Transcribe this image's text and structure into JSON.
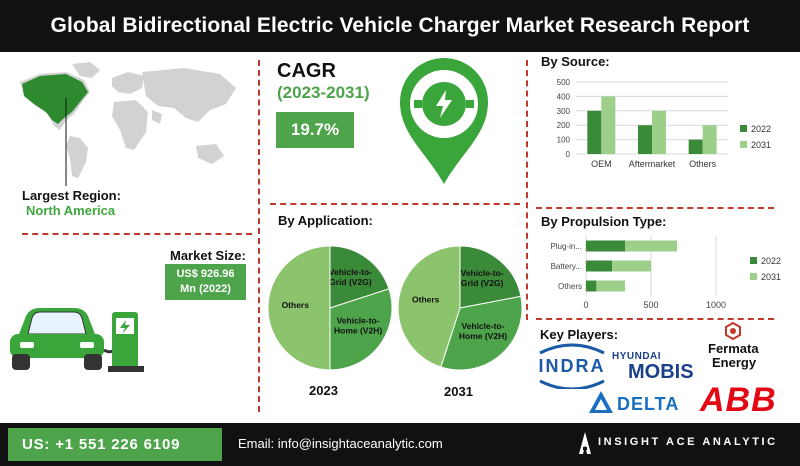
{
  "header": {
    "title": "Global Bidirectional Electric Vehicle Charger Market Research Report"
  },
  "largest_region": {
    "label": "Largest Region:",
    "value": "North America"
  },
  "market_size": {
    "label": "Market Size:",
    "line1": "US$ 926.96",
    "line2": "Mn (2022)"
  },
  "cagr": {
    "label": "CAGR",
    "period": "(2023-2031)",
    "value": "19.7%"
  },
  "footer": {
    "phone": "US: +1 551 226 6109",
    "email": "Email: info@insightaceanalytic.com",
    "brand": "INSIGHT ACE ANALYTIC"
  },
  "key_players": {
    "title": "Key Players:",
    "logos": [
      "INDRA",
      "HYUNDAI",
      "MOBIS",
      "Fermata",
      "Energy",
      "DELTA",
      "ABB"
    ]
  },
  "colors": {
    "dark_green": "#3a8a3a",
    "light_green": "#9ccf8a",
    "brand_green": "#4ea44b",
    "divider_red": "#c0392b"
  },
  "chart_data": [
    {
      "type": "bar",
      "title": "By Source:",
      "categories": [
        "OEM",
        "Aftermarket",
        "Others"
      ],
      "series": [
        {
          "name": "2022",
          "values": [
            300,
            200,
            100
          ]
        },
        {
          "name": "2031",
          "values": [
            400,
            300,
            200
          ]
        }
      ],
      "ylim": [
        0,
        500
      ],
      "yticks": [
        "0",
        "100",
        "200",
        "300",
        "400",
        "500"
      ],
      "grid": true,
      "legend": "right"
    },
    {
      "type": "bar",
      "orientation": "horizontal",
      "stacked": true,
      "title": "By Propulsion Type:",
      "categories": [
        "Plug-in...",
        "Battery...",
        "Others"
      ],
      "series": [
        {
          "name": "2022",
          "values": [
            300,
            200,
            80
          ]
        },
        {
          "name": "2031",
          "values": [
            400,
            300,
            220
          ]
        }
      ],
      "xlim": [
        0,
        1000
      ],
      "xticks": [
        "0",
        "500",
        "1000"
      ],
      "grid": true,
      "legend": "right"
    },
    {
      "type": "pie",
      "title": "By Application:",
      "label": "2023",
      "slices": [
        {
          "name": "Vehicle-to-Grid (V2G)",
          "value": 20
        },
        {
          "name": "Vehicle-to-Home (V2H)",
          "value": 30
        },
        {
          "name": "Others",
          "value": 50
        }
      ]
    },
    {
      "type": "pie",
      "title": "By Application:",
      "label": "2031",
      "slices": [
        {
          "name": "Vehicle-to-Grid (V2G)",
          "value": 22
        },
        {
          "name": "Vehicle-to-Home (V2H)",
          "value": 33
        },
        {
          "name": "Others",
          "value": 45
        }
      ]
    }
  ]
}
